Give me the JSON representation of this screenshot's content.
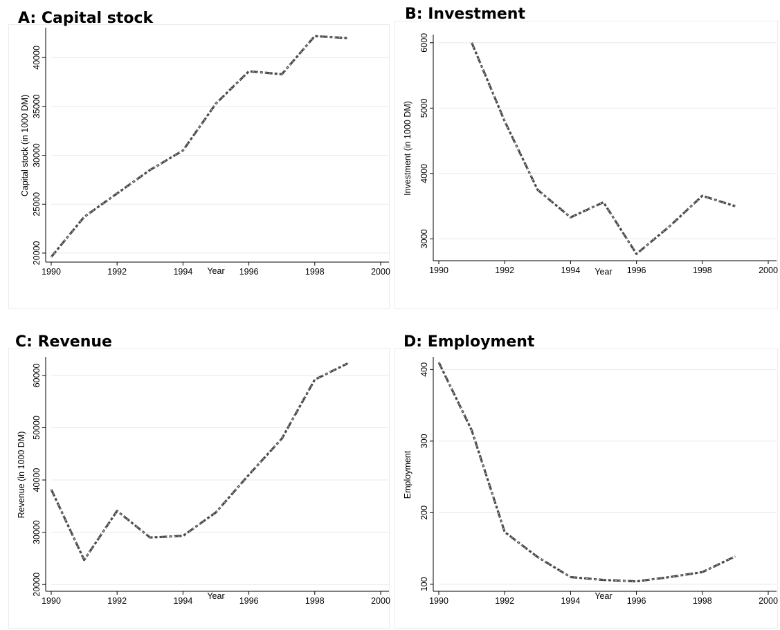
{
  "colors": {
    "series_line": "#4a4a4a",
    "series_center": "#e0e0e0",
    "grid": "#e8e8e8",
    "axis": "#000000",
    "panel_border": "#ececec"
  },
  "chart_data": [
    {
      "panel_title": "A: Capital stock",
      "type": "line",
      "xlabel": "Year",
      "ylabel": "Capital stock (in 1000 DM)",
      "xlim": [
        1990,
        2000
      ],
      "ylim": [
        19500,
        42500
      ],
      "xticks": [
        1990,
        1992,
        1994,
        1996,
        1998,
        2000
      ],
      "xtick_labels": [
        "1990",
        "1992",
        "1994",
        "1996",
        "1998",
        "2000"
      ],
      "yticks": [
        20000,
        25000,
        30000,
        35000,
        40000
      ],
      "ytick_labels": [
        "20000",
        "25000",
        "30000",
        "35000",
        "40000"
      ],
      "grid": true,
      "line_style": "dash-dot",
      "x": [
        1990,
        1991,
        1992,
        1993,
        1994,
        1995,
        1996,
        1997,
        1998,
        1999
      ],
      "y": [
        19600,
        23700,
        26100,
        28500,
        30500,
        35300,
        38600,
        38300,
        42200,
        42000
      ]
    },
    {
      "panel_title": "B: Investment",
      "type": "line",
      "xlabel": "Year",
      "ylabel": "Investment (in 1000 DM)",
      "xlim": [
        1990,
        2000
      ],
      "ylim": [
        2730,
        6040
      ],
      "xticks": [
        1990,
        1992,
        1994,
        1996,
        1998,
        2000
      ],
      "xtick_labels": [
        "1990",
        "1992",
        "1994",
        "1996",
        "1998",
        "2000"
      ],
      "yticks": [
        3000,
        4000,
        5000,
        6000
      ],
      "ytick_labels": [
        "3000",
        "4000",
        "5000",
        "6000"
      ],
      "grid": true,
      "line_style": "dash-dot",
      "x": [
        1991,
        1992,
        1993,
        1994,
        1995,
        1996,
        1997,
        1998,
        1999
      ],
      "y": [
        6000,
        4800,
        3750,
        3330,
        3560,
        2770,
        3190,
        3660,
        3500
      ]
    },
    {
      "panel_title": "C: Revenue",
      "type": "line",
      "xlabel": "Year",
      "ylabel": "Revenue (in 1000 DM)",
      "xlim": [
        1990,
        2000
      ],
      "ylim": [
        19500,
        62500
      ],
      "xticks": [
        1990,
        1992,
        1994,
        1996,
        1998,
        2000
      ],
      "xtick_labels": [
        "1990",
        "1992",
        "1994",
        "1996",
        "1998",
        "2000"
      ],
      "yticks": [
        20000,
        30000,
        40000,
        50000,
        60000
      ],
      "ytick_labels": [
        "20000",
        "30000",
        "40000",
        "50000",
        "60000"
      ],
      "grid": true,
      "line_style": "dash-dot",
      "x": [
        1990,
        1991,
        1992,
        1993,
        1994,
        1995,
        1996,
        1997,
        1998,
        1999
      ],
      "y": [
        38200,
        24700,
        34100,
        29000,
        29300,
        33800,
        41000,
        47900,
        59200,
        62300
      ]
    },
    {
      "panel_title": "D: Employment",
      "type": "line",
      "xlabel": "Year",
      "ylabel": "Employment",
      "xlim": [
        1990,
        2000
      ],
      "ylim": [
        96,
        410
      ],
      "xticks": [
        1990,
        1992,
        1994,
        1996,
        1998,
        2000
      ],
      "xtick_labels": [
        "1990",
        "1992",
        "1994",
        "1996",
        "1998",
        "2000"
      ],
      "yticks": [
        100,
        200,
        300,
        400
      ],
      "ytick_labels": [
        "100",
        "200",
        "300",
        "400"
      ],
      "grid": true,
      "line_style": "dash-dot",
      "x": [
        1990,
        1991,
        1992,
        1993,
        1994,
        1995,
        1996,
        1997,
        1998,
        1999
      ],
      "y": [
        410,
        315,
        173,
        138,
        110,
        106,
        104,
        110,
        117,
        139
      ]
    }
  ]
}
